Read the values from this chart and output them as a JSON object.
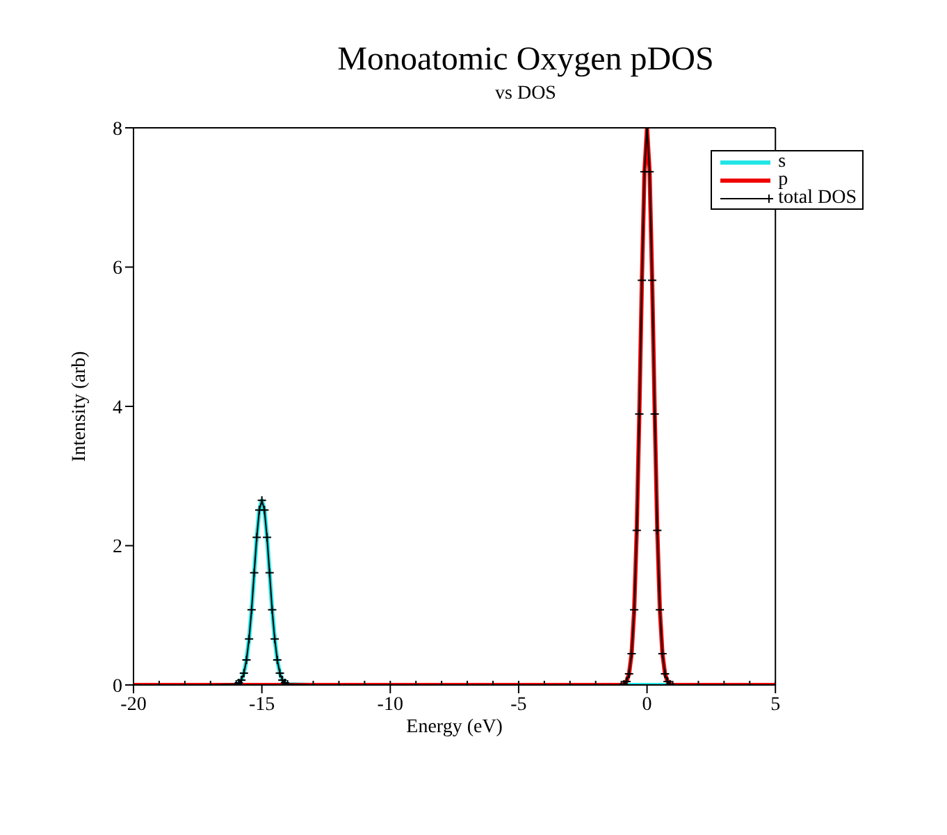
{
  "chart_data": {
    "type": "line",
    "title": "Monoatomic Oxygen pDOS",
    "subtitle": "vs DOS",
    "xlabel": "Energy (eV)",
    "ylabel": "Intensity (arb)",
    "x": [
      -20,
      -19,
      -18,
      -17,
      -16,
      -15.9,
      -15.8,
      -15.7,
      -15.6,
      -15.5,
      -15.4,
      -15.3,
      -15.2,
      -15.1,
      -15,
      -14.9,
      -14.8,
      -14.7,
      -14.6,
      -14.5,
      -14.4,
      -14.3,
      -14.2,
      -14.1,
      -14,
      -13,
      -12,
      -11,
      -10,
      -9,
      -8,
      -7,
      -6,
      -5,
      -4,
      -3,
      -2,
      -1,
      -0.9,
      -0.8,
      -0.7,
      -0.6,
      -0.5,
      -0.4,
      -0.3,
      -0.2,
      -0.1,
      0,
      0.1,
      0.2,
      0.3,
      0.4,
      0.5,
      0.6,
      0.7,
      0.8,
      0.9,
      1,
      2,
      3,
      4,
      5
    ],
    "series": [
      {
        "name": "s",
        "color": "#22e6e6",
        "values": [
          null,
          null,
          null,
          null,
          0.01,
          0.03,
          0.07,
          0.17,
          0.36,
          0.66,
          1.08,
          1.61,
          2.12,
          2.51,
          2.65,
          2.51,
          2.12,
          1.61,
          1.08,
          0.66,
          0.36,
          0.17,
          0.07,
          0.03,
          0.01,
          0,
          0,
          0,
          0,
          0,
          0,
          0,
          0,
          0,
          0,
          0,
          0,
          0,
          0,
          0,
          0,
          0,
          0,
          0,
          0,
          0,
          0,
          0,
          0,
          0,
          0,
          0,
          0,
          0,
          0,
          0,
          0,
          0,
          null,
          null,
          null,
          null
        ]
      },
      {
        "name": "p",
        "color": "#ee0000",
        "values": [
          0,
          0,
          0,
          0,
          0,
          0,
          0,
          0,
          0,
          0,
          0,
          0,
          0,
          0,
          0,
          0,
          0,
          0,
          0,
          0,
          0,
          0,
          0,
          0,
          0,
          0,
          0,
          0,
          0,
          0,
          0,
          0,
          0,
          0,
          0,
          0,
          0,
          0,
          0.01,
          0.05,
          0.16,
          0.45,
          1.08,
          2.22,
          3.89,
          5.81,
          7.37,
          8.0,
          7.37,
          5.81,
          3.89,
          2.22,
          1.08,
          0.45,
          0.16,
          0.05,
          0.01,
          0,
          0,
          0,
          0,
          0
        ]
      },
      {
        "name": "total DOS",
        "color": "#000000",
        "marker": "cross",
        "values": [
          0,
          0,
          0,
          0,
          0.01,
          0.03,
          0.07,
          0.17,
          0.36,
          0.66,
          1.08,
          1.61,
          2.12,
          2.51,
          2.65,
          2.51,
          2.12,
          1.61,
          1.08,
          0.66,
          0.36,
          0.17,
          0.07,
          0.03,
          0.01,
          0,
          0,
          0,
          0,
          0,
          0,
          0,
          0,
          0,
          0,
          0,
          0,
          0,
          0.01,
          0.05,
          0.16,
          0.45,
          1.08,
          2.22,
          3.89,
          5.81,
          7.37,
          8.0,
          7.37,
          5.81,
          3.89,
          2.22,
          1.08,
          0.45,
          0.16,
          0.05,
          0.01,
          0,
          0,
          0,
          0,
          0
        ]
      }
    ],
    "xlim": [
      -20,
      5
    ],
    "xticks": [
      -20,
      -15,
      -10,
      -5,
      0,
      5
    ],
    "ylim": [
      0,
      8
    ],
    "yticks": [
      0,
      2,
      4,
      6,
      8
    ],
    "grid": false,
    "legend": "top right"
  }
}
